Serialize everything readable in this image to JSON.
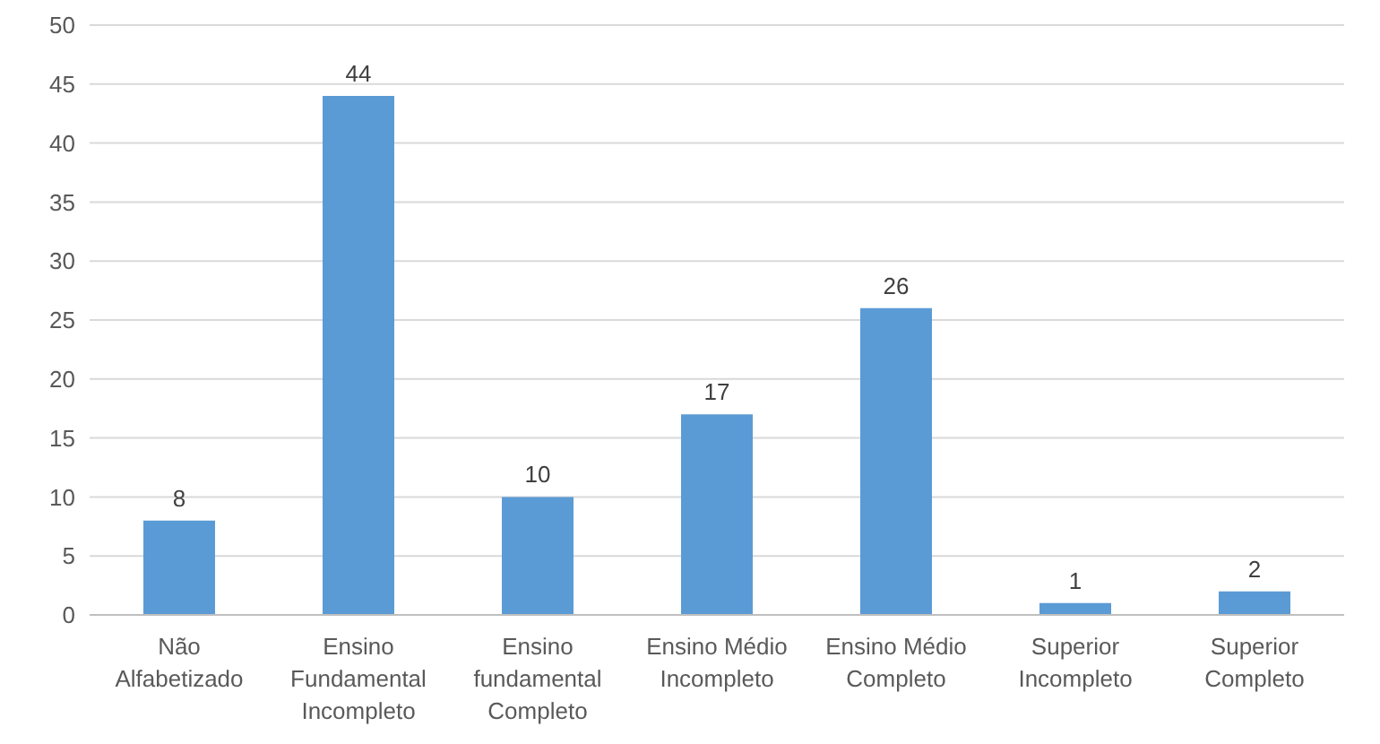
{
  "chart_data": {
    "type": "bar",
    "categories": [
      "Não Alfabetizado",
      "Ensino Fundamental Incompleto",
      "Ensino fundamental Completo",
      "Ensino Médio Incompleto",
      "Ensino Médio Completo",
      "Superior Incompleto",
      "Superior Completo"
    ],
    "values": [
      8,
      44,
      10,
      17,
      26,
      1,
      2
    ],
    "color": "#5b9bd5",
    "ylim": [
      0,
      50
    ],
    "yticks": [
      0,
      5,
      10,
      15,
      20,
      25,
      30,
      35,
      40,
      45,
      50
    ],
    "grid": "y",
    "data_labels": true,
    "legend": false
  }
}
